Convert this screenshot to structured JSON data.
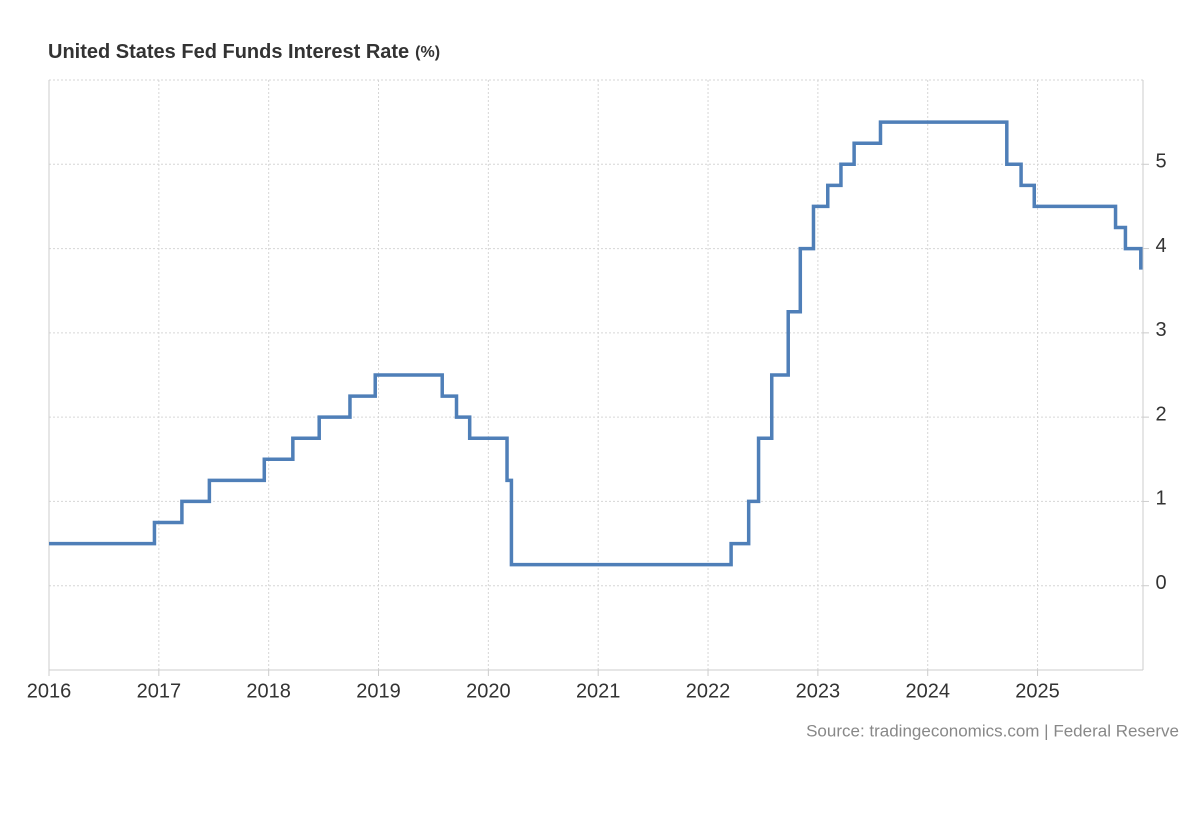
{
  "chart_data": {
    "type": "line",
    "step": "post",
    "title": "United States Fed Funds Interest Rate",
    "unit": "(%)",
    "source": "Source: tradingeconomics.com | Federal Reserve",
    "x": [
      2016.0,
      2016.96,
      2017.21,
      2017.46,
      2017.96,
      2018.22,
      2018.46,
      2018.74,
      2018.97,
      2019.58,
      2019.71,
      2019.83,
      2020.17,
      2020.21,
      2022.21,
      2022.37,
      2022.46,
      2022.58,
      2022.73,
      2022.84,
      2022.96,
      2023.09,
      2023.21,
      2023.33,
      2023.57,
      2024.72,
      2024.85,
      2024.97,
      2025.71,
      2025.8,
      2025.94
    ],
    "values": [
      0.5,
      0.75,
      1.0,
      1.25,
      1.5,
      1.75,
      2.0,
      2.25,
      2.5,
      2.25,
      2.0,
      1.75,
      1.25,
      0.25,
      0.5,
      1.0,
      1.75,
      2.5,
      3.25,
      4.0,
      4.5,
      4.75,
      5.0,
      5.25,
      5.5,
      5.0,
      4.75,
      4.5,
      4.25,
      4.0,
      3.75
    ],
    "color": "#4f7fb8",
    "xlim": [
      2016,
      2025.96
    ],
    "xticks": [
      2016,
      2017,
      2018,
      2019,
      2020,
      2021,
      2022,
      2023,
      2024,
      2025
    ],
    "ylim": [
      -1,
      6
    ],
    "yticks": [
      0,
      1,
      2,
      3,
      4,
      5
    ],
    "grid": true
  }
}
